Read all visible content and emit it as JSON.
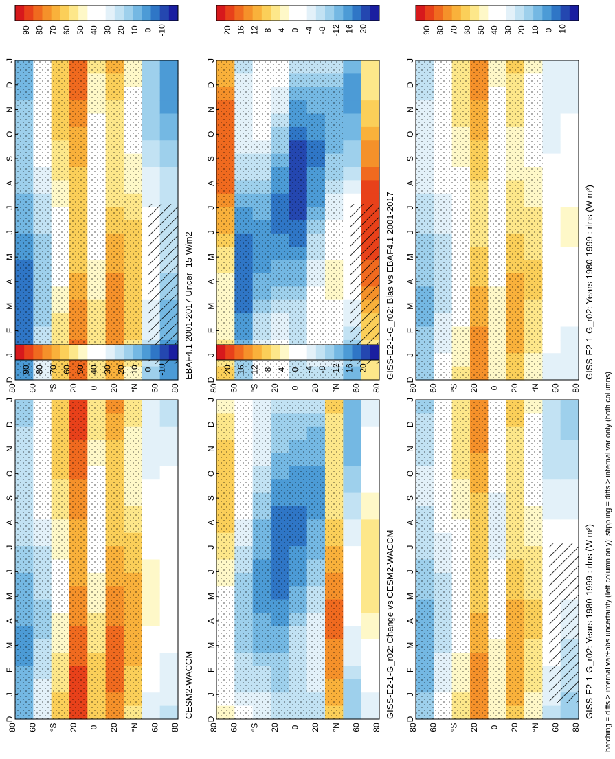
{
  "figure": {
    "footer": "hatching = diffs > internal var+obs uncertainty (left column only); stippling = diffs > internal var only (both columns)",
    "month_ticks": [
      "D",
      "J",
      "F",
      "M",
      "A",
      "M",
      "J",
      "J",
      "A",
      "S",
      "O",
      "N",
      "D",
      "J"
    ],
    "lat_ticks": [
      "80",
      "60",
      "°N",
      "20",
      "0",
      "20",
      "°S",
      "60",
      "80"
    ],
    "palettes": {
      "abs": [
        "#d7191c",
        "#e8411a",
        "#f06a1f",
        "#f5912a",
        "#f9b13b",
        "#fbcf59",
        "#fde78a",
        "#fef8c8",
        "#ffffff",
        "#ffffff",
        "#e3f1f9",
        "#c2e2f3",
        "#9ed0ec",
        "#74b8e3",
        "#4c9bd6",
        "#2f76c6",
        "#2447b0",
        "#1a1ea0"
      ],
      "diff": [
        "#d7191c",
        "#e8411a",
        "#f06a1f",
        "#f5912a",
        "#f9b13b",
        "#fbcf59",
        "#fde78a",
        "#fef8c8",
        "#ffffff",
        "#ffffff",
        "#e3f1f9",
        "#c2e2f3",
        "#9ed0ec",
        "#74b8e3",
        "#4c9bd6",
        "#2f76c6",
        "#2447b0",
        "#1a1ea0"
      ]
    }
  },
  "chart_data": [
    {
      "type": "heatmap",
      "title": "GISS-E2-1-G_r02: Years 1980-1999 : rlns (W m²)",
      "colorbar_ticks": [
        "90",
        "80",
        "70",
        "60",
        "50",
        "40",
        "30",
        "20",
        "10",
        "0",
        "-10"
      ],
      "palette": "abs",
      "hatching": true,
      "stippling": true,
      "x": [
        "D",
        "J",
        "F",
        "M",
        "A",
        "M",
        "J",
        "J",
        "A",
        "S",
        "O",
        "N",
        "D",
        "J"
      ],
      "y": [
        "80",
        "60",
        "°N",
        "20",
        "0",
        "20",
        "°S",
        "60",
        "80"
      ],
      "row_values": [
        22,
        35,
        50,
        68,
        42,
        62,
        52,
        35,
        30
      ],
      "seasonal_amplitude": 8
    },
    {
      "type": "heatmap",
      "title": "GISS-E2-1-G_r02: Years 1980-1999 : rlns (W m²)",
      "colorbar_ticks": [
        "90",
        "80",
        "70",
        "60",
        "50",
        "40",
        "30",
        "20",
        "10",
        "0",
        "-10"
      ],
      "palette": "abs",
      "hatching": false,
      "stippling": true,
      "x": [
        "D",
        "J",
        "F",
        "M",
        "A",
        "M",
        "J",
        "J",
        "A",
        "S",
        "O",
        "N",
        "D",
        "J"
      ],
      "y": [
        "80",
        "60",
        "°N",
        "20",
        "0",
        "20",
        "°S",
        "60",
        "80"
      ],
      "row_values": [
        25,
        35,
        48,
        66,
        45,
        60,
        52,
        38,
        40
      ],
      "seasonal_amplitude": 8
    },
    {
      "type": "heatmap",
      "title": "EBAF4.1 2001-2017 Uncer=15 W/m2",
      "colorbar_ticks": [
        "90",
        "80",
        "70",
        "60",
        "50",
        "40",
        "30",
        "20",
        "10",
        "0",
        "-10"
      ],
      "palette": "abs",
      "hatching": true,
      "stippling": true,
      "x": [
        "D",
        "J",
        "F",
        "M",
        "A",
        "M",
        "J",
        "J",
        "A",
        "S",
        "O",
        "N",
        "D",
        "J"
      ],
      "y": [
        "80",
        "60",
        "°N",
        "20",
        "0",
        "20",
        "°S",
        "60",
        "80"
      ],
      "row_values": [
        12,
        30,
        55,
        70,
        48,
        65,
        55,
        30,
        18
      ],
      "seasonal_amplitude": 10
    },
    {
      "type": "heatmap",
      "title": "CESM2-WACCM",
      "colorbar_ticks": [
        "90",
        "80",
        "70",
        "60",
        "50",
        "40",
        "30",
        "20",
        "10",
        "0",
        "-10"
      ],
      "palette": "abs",
      "hatching": false,
      "stippling": true,
      "x": [
        "D",
        "J",
        "F",
        "M",
        "A",
        "M",
        "J",
        "J",
        "A",
        "S",
        "O",
        "N",
        "D",
        "J"
      ],
      "y": [
        "80",
        "60",
        "°N",
        "20",
        "0",
        "20",
        "°S",
        "60",
        "80"
      ],
      "row_values": [
        20,
        32,
        55,
        78,
        52,
        70,
        60,
        40,
        38
      ],
      "seasonal_amplitude": 9
    },
    {
      "type": "heatmap",
      "title": "GISS-E2-1-G_r02: Bias vs EBAF4.1 2001-2017",
      "colorbar_ticks": [
        "20",
        "16",
        "12",
        "8",
        "4",
        "0",
        "-4",
        "-8",
        "-12",
        "-16",
        "-20"
      ],
      "palette": "diff",
      "hatching": true,
      "stippling": true,
      "x": [
        "D",
        "J",
        "F",
        "M",
        "A",
        "M",
        "J",
        "J",
        "A",
        "S",
        "O",
        "N",
        "D",
        "J"
      ],
      "y": [
        "80",
        "60",
        "°N",
        "20",
        "0",
        "20",
        "°S",
        "60",
        "80"
      ],
      "row_values": [
        10,
        -10,
        -6,
        -8,
        -12,
        -8,
        -4,
        -6,
        12
      ],
      "seasonal_amplitude": 7
    },
    {
      "type": "heatmap",
      "title": "GISS-E2-1-G_r02: Change vs CESM2-WACCM",
      "colorbar_ticks": [
        "20",
        "16",
        "12",
        "8",
        "4",
        "0",
        "-4",
        "-8",
        "-12",
        "-16",
        "-20"
      ],
      "palette": "diff",
      "hatching": false,
      "stippling": true,
      "x": [
        "D",
        "J",
        "F",
        "M",
        "A",
        "M",
        "J",
        "J",
        "A",
        "S",
        "O",
        "N",
        "D",
        "J"
      ],
      "y": [
        "80",
        "60",
        "°N",
        "20",
        "0",
        "20",
        "°S",
        "60",
        "80"
      ],
      "row_values": [
        4,
        -4,
        -8,
        -12,
        -10,
        -8,
        10,
        -6,
        2
      ],
      "seasonal_amplitude": 5
    }
  ]
}
